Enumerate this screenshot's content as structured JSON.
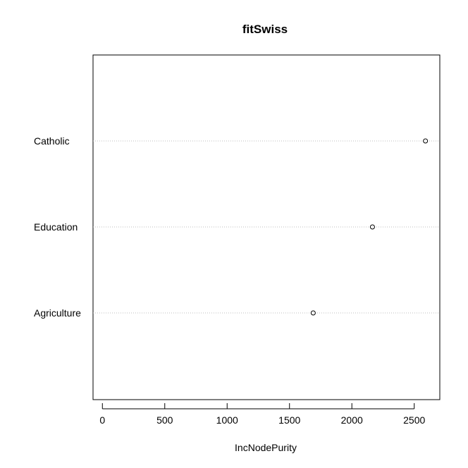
{
  "chart_data": {
    "type": "scatter",
    "title": "fitSwiss",
    "xlabel": "IncNodePurity",
    "ylabel": "",
    "categories": [
      "Catholic",
      "Education",
      "Agriculture"
    ],
    "values": [
      2590,
      2165,
      1690
    ],
    "xlim": [
      -75,
      2705
    ],
    "xticks": [
      0,
      500,
      1000,
      1500,
      2000,
      2500
    ],
    "xtick_labels": [
      "0",
      "500",
      "1000",
      "1500",
      "2000",
      "2500"
    ],
    "grid": "dotted horizontal guide lines per category",
    "legend": "none"
  }
}
